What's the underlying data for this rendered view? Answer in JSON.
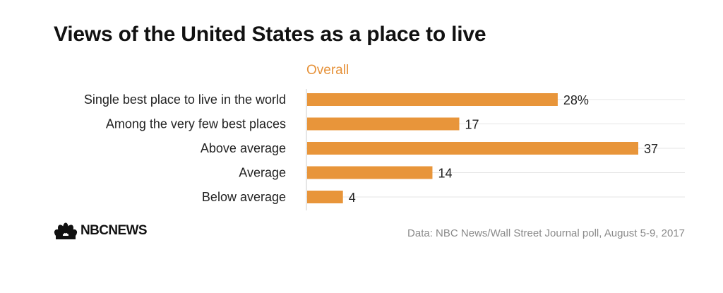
{
  "title": "Views of the United States as a place to live",
  "logo_text": "NBCNEWS",
  "source": "Data: NBC News/Wall Street Journal poll, August 5-9, 2017",
  "colors": {
    "bar": "#e8953a",
    "series_label": "#e6923a",
    "grid": "#e6e6e6",
    "axis": "#cccccc"
  },
  "chart_data": {
    "type": "bar",
    "orientation": "horizontal",
    "categories": [
      "Single best place to live in the world",
      "Among the very few best places",
      "Above average",
      "Average",
      "Below average"
    ],
    "series": [
      {
        "name": "Overall",
        "values": [
          28,
          17,
          37,
          14,
          4
        ]
      }
    ],
    "value_labels": [
      "28%",
      "17",
      "37",
      "14",
      "4"
    ],
    "xlim": [
      0,
      37
    ],
    "grid": true
  }
}
